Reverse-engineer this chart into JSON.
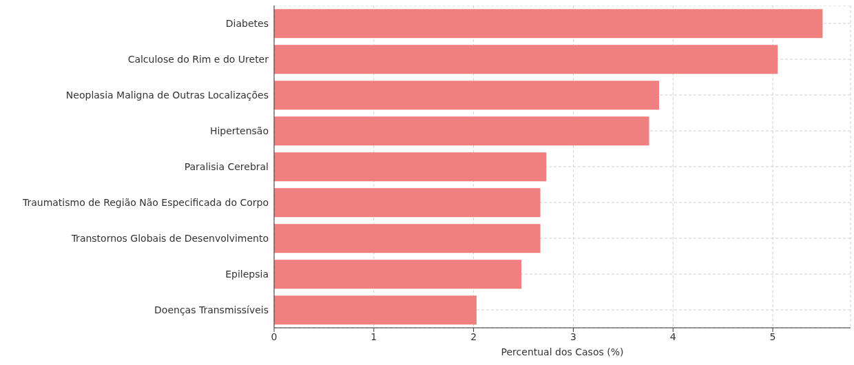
{
  "chart_data": {
    "type": "bar",
    "orientation": "horizontal",
    "xlabel": "Percentual dos Casos (%)",
    "categories": [
      "Diabetes",
      "Calculose do Rim e do Ureter",
      "Neoplasia Maligna de Outras Localizações",
      "Hipertensão",
      "Paralisia Cerebral",
      "Traumatismo de Região Não Especificada do Corpo",
      "Transtornos Globais de Desenvolvimento",
      "Epilepsia",
      "Doenças Transmissíveis"
    ],
    "values": [
      5.5,
      5.05,
      3.86,
      3.76,
      2.73,
      2.67,
      2.67,
      2.48,
      2.03
    ],
    "color": "#f08080",
    "xlim": [
      0,
      5.78
    ],
    "xticks": [
      0,
      1,
      2,
      3,
      4,
      5
    ],
    "grid": true
  }
}
